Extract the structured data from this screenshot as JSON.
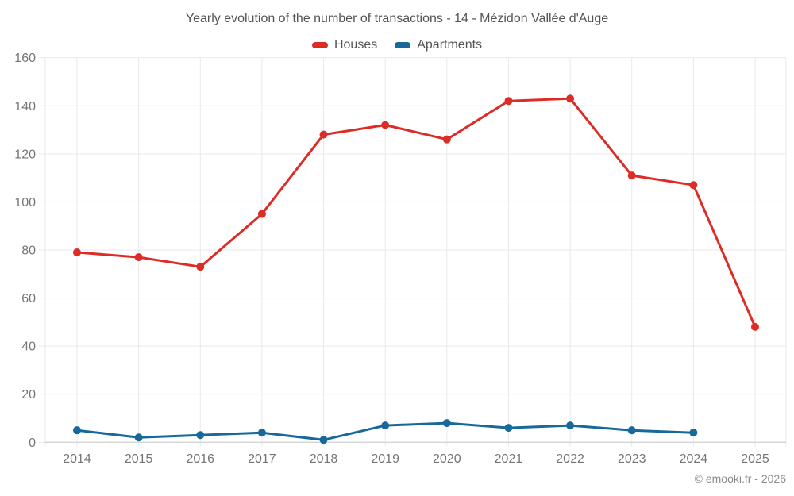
{
  "chart_data": {
    "type": "line",
    "title": "Yearly evolution of the number of transactions - 14 - Mézidon Vallée d'Auge",
    "categories": [
      "2014",
      "2015",
      "2016",
      "2017",
      "2018",
      "2019",
      "2020",
      "2021",
      "2022",
      "2023",
      "2024",
      "2025"
    ],
    "series": [
      {
        "name": "Houses",
        "color": "#dd2c26",
        "values": [
          79,
          77,
          73,
          95,
          128,
          132,
          126,
          142,
          143,
          111,
          107,
          48
        ]
      },
      {
        "name": "Apartments",
        "color": "#17699c",
        "values": [
          5,
          2,
          3,
          4,
          1,
          7,
          8,
          6,
          7,
          5,
          4,
          null
        ]
      }
    ],
    "ylim": [
      0,
      160
    ],
    "yticks": [
      0,
      20,
      40,
      60,
      80,
      100,
      120,
      140,
      160
    ],
    "grid": true,
    "legend_position": "top",
    "marker_radius": 5,
    "line_width": 3
  },
  "colors": {
    "title_text": "#545454",
    "axis_text": "#757575",
    "grid_line": "#e9e9e9",
    "baseline": "#c9c9c9",
    "footer_text": "#8c8c8c",
    "background": "#ffffff"
  },
  "footer": {
    "copyright": "© emooki.fr - 2026"
  }
}
